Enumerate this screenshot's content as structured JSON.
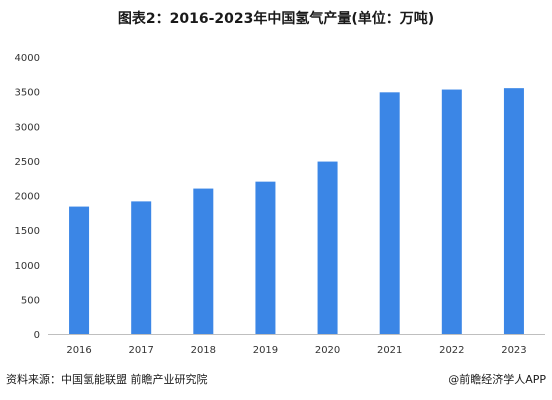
{
  "title": "图表2：2016-2023年中国氢气产量(单位：万吨)",
  "source": "资料来源：中国氢能联盟 前瞻产业研究院",
  "credit": "@前瞻经济学人APP",
  "colors": {
    "bar": "#3b86e6",
    "axis": "#bfbfbf",
    "text": "#333333"
  },
  "chart_data": {
    "type": "bar",
    "title": "图表2：2016-2023年中国氢气产量(单位：万吨)",
    "xlabel": "",
    "ylabel": "",
    "categories": [
      "2016",
      "2017",
      "2018",
      "2019",
      "2020",
      "2021",
      "2022",
      "2023"
    ],
    "values": [
      1840,
      1915,
      2100,
      2200,
      2490,
      3490,
      3530,
      3550
    ],
    "ylim": [
      0,
      4000
    ],
    "yticks": [
      0,
      500,
      1000,
      1500,
      2000,
      2500,
      3000,
      3500,
      4000
    ],
    "grid": false,
    "legend": "none"
  }
}
